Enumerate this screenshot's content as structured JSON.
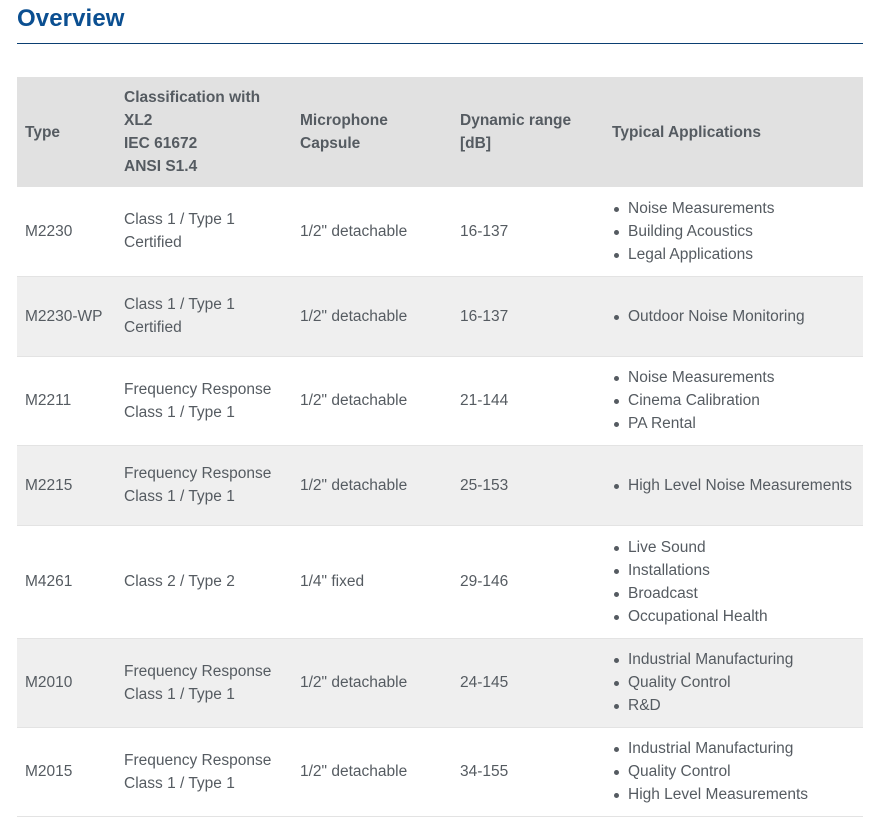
{
  "page": {
    "title": "Overview"
  },
  "table": {
    "headers": [
      [
        "Type"
      ],
      [
        "Classification with",
        "XL2",
        "IEC 61672",
        "ANSI S1.4"
      ],
      [
        "Microphone",
        "Capsule"
      ],
      [
        "Dynamic range",
        "[dB]"
      ],
      [
        "Typical Applications"
      ]
    ],
    "rows": [
      {
        "type": "M2230",
        "classification": [
          "Class 1 / Type 1",
          "Certified"
        ],
        "capsule": "1/2\" detachable",
        "range": "16-137",
        "applications": [
          "Noise Measurements",
          "Building Acoustics",
          "Legal Applications"
        ]
      },
      {
        "type": "M2230-WP",
        "classification": [
          "Class 1 / Type 1",
          "Certified"
        ],
        "capsule": "1/2\" detachable",
        "range": "16-137",
        "applications": [
          "Outdoor Noise Monitoring"
        ]
      },
      {
        "type": "M2211",
        "classification": [
          "Frequency Response",
          "Class 1 / Type 1"
        ],
        "capsule": "1/2\" detachable",
        "range": "21-144",
        "applications": [
          "Noise Measurements",
          "Cinema Calibration",
          "PA Rental"
        ]
      },
      {
        "type": "M2215",
        "classification": [
          "Frequency Response",
          "Class 1 / Type 1"
        ],
        "capsule": "1/2\" detachable",
        "range": "25-153",
        "applications": [
          "High Level Noise Measurements"
        ]
      },
      {
        "type": "M4261",
        "classification": [
          "Class 2 / Type 2"
        ],
        "capsule": "1/4\" fixed",
        "range": "29-146",
        "applications": [
          "Live Sound",
          "Installations",
          "Broadcast",
          "Occupational Health"
        ]
      },
      {
        "type": "M2010",
        "classification": [
          "Frequency Response",
          "Class 1 / Type 1"
        ],
        "capsule": "1/2\" detachable",
        "range": "24-145",
        "applications": [
          "Industrial Manufacturing",
          "Quality Control",
          "R&D"
        ]
      },
      {
        "type": "M2015",
        "classification": [
          "Frequency Response",
          "Class 1 / Type 1"
        ],
        "capsule": "1/2\" detachable",
        "range": "34-155",
        "applications": [
          "Industrial Manufacturing",
          "Quality Control",
          "High Level Measurements"
        ]
      }
    ]
  },
  "colors": {
    "title": "#0b4f91",
    "rule": "#0b3f72",
    "header_bg": "#e1e1e1",
    "stripe_bg": "#efefef",
    "text": "#555b61"
  }
}
